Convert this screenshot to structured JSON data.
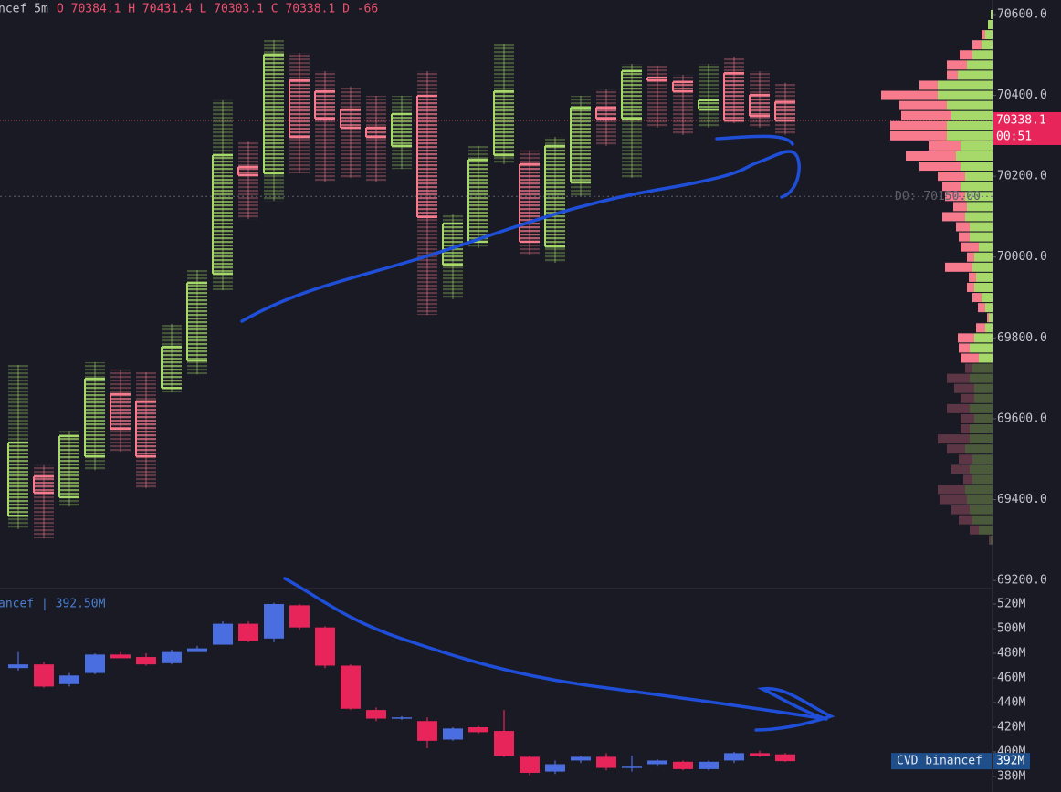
{
  "header": {
    "symbol": "ncef 5m",
    "stats": "O 70384.1 H 70431.4 L 70303.1 C 70338.1 D -66"
  },
  "chart_data": [
    {
      "type": "candlestick",
      "ylim": [
        69180,
        70636
      ],
      "yticks": [
        {
          "value": 70600,
          "label": "70600.0"
        },
        {
          "value": 70400,
          "label": "70400.0"
        },
        {
          "value": 70200,
          "label": "70200.0"
        },
        {
          "value": 70000,
          "label": "70000.0"
        },
        {
          "value": 69800,
          "label": "69800.0"
        },
        {
          "value": 69600,
          "label": "69600.0"
        },
        {
          "value": 69400,
          "label": "69400.0"
        },
        {
          "value": 69200,
          "label": "69200.0"
        }
      ],
      "up_color": "#a6d86a",
      "down_color": "#f77a8d",
      "open": [
        69360,
        69457,
        69406,
        69507,
        69661,
        69643,
        69676,
        69744,
        69959,
        70223,
        70207,
        70437,
        70410,
        70365,
        70320,
        70275,
        70399,
        69981,
        70038,
        70252,
        70230,
        70026,
        70185,
        70370,
        70343,
        70444,
        70433,
        70365,
        70455,
        70401,
        70384.1
      ],
      "high": [
        69733,
        69485,
        69570,
        69740,
        69722,
        69715,
        69835,
        69968,
        70388,
        70286,
        70537,
        70505,
        70460,
        70422,
        70399,
        70399,
        70460,
        70106,
        70275,
        70528,
        70264,
        70297,
        70399,
        70415,
        70478,
        70474,
        70451,
        70478,
        70496,
        70460,
        70431.4
      ],
      "low": [
        69327,
        69304,
        69383,
        69473,
        69518,
        69428,
        69665,
        69710,
        69918,
        70094,
        70139,
        70207,
        70185,
        70196,
        70185,
        70218,
        69857,
        69896,
        70022,
        70230,
        70004,
        69986,
        70151,
        70275,
        70196,
        70320,
        70302,
        70320,
        70331,
        70320,
        70303.1
      ],
      "close": [
        69541,
        69417,
        69557,
        69699,
        69575,
        69507,
        69778,
        69936,
        70252,
        70203,
        70501,
        70297,
        70343,
        70320,
        70297,
        70354,
        70099,
        70083,
        70241,
        70410,
        70038,
        70275,
        70370,
        70343,
        70460,
        70437,
        70410,
        70388,
        70338,
        70349,
        70338.1
      ],
      "price_tag": "70338.1",
      "countdown": "00:51",
      "daily_open": 70150,
      "daily_open_label": "DO: 70150.00",
      "volume_profile": {
        "levels": [
          70600,
          70575,
          70550,
          70525,
          70500,
          70475,
          70450,
          70425,
          70400,
          70375,
          70350,
          70325,
          70300,
          70275,
          70250,
          70225,
          70200,
          70175,
          70150,
          70125,
          70100,
          70075,
          70050,
          70025,
          70000,
          69975,
          69950,
          69925,
          69900,
          69875,
          69850,
          69825,
          69800,
          69775,
          69750,
          69725,
          69700,
          69675,
          69650,
          69625,
          69600,
          69575,
          69550,
          69525,
          69500,
          69475,
          69450,
          69425,
          69400,
          69375,
          69350,
          69325,
          69300
        ],
        "buy": [
          2,
          5,
          8,
          12,
          22,
          28,
          38,
          60,
          60,
          50,
          45,
          50,
          50,
          35,
          40,
          35,
          30,
          35,
          30,
          28,
          30,
          25,
          25,
          15,
          20,
          22,
          18,
          20,
          12,
          8,
          4,
          8,
          20,
          25,
          15,
          22,
          25,
          20,
          20,
          25,
          20,
          25,
          25,
          30,
          22,
          25,
          22,
          30,
          28,
          25,
          22,
          15,
          2
        ],
        "sell": [
          0,
          0,
          4,
          10,
          14,
          22,
          12,
          20,
          62,
          52,
          55,
          62,
          62,
          35,
          55,
          45,
          30,
          20,
          22,
          15,
          25,
          15,
          12,
          20,
          8,
          30,
          8,
          8,
          10,
          8,
          2,
          10,
          18,
          12,
          20,
          8,
          25,
          22,
          15,
          25,
          15,
          10,
          35,
          20,
          15,
          20,
          10,
          30,
          30,
          20,
          15,
          10,
          2
        ],
        "value_area_low": 69737
      }
    },
    {
      "type": "candlestick",
      "ylim": [
        367.4,
        532.6
      ],
      "yticks": [
        {
          "value": 520,
          "label": "520M"
        },
        {
          "value": 500,
          "label": "500M"
        },
        {
          "value": 480,
          "label": "480M"
        },
        {
          "value": 460,
          "label": "460M"
        },
        {
          "value": 440,
          "label": "440M"
        },
        {
          "value": 420,
          "label": "420M"
        },
        {
          "value": 400,
          "label": "400M"
        },
        {
          "value": 380,
          "label": "380M"
        }
      ],
      "up_color": "#4a6ee0",
      "down_color": "#e8255a",
      "open": [
        468,
        471,
        455,
        464,
        479,
        477,
        472,
        481,
        487,
        504,
        492,
        519,
        501,
        470,
        434,
        427,
        425,
        410,
        420,
        417,
        396,
        384,
        393,
        396,
        387,
        390,
        392,
        386,
        393,
        399,
        398
      ],
      "high": [
        481,
        473,
        464,
        480,
        481,
        480,
        483,
        486,
        506,
        506,
        521,
        520,
        502,
        471,
        436,
        429,
        428,
        420,
        421,
        434,
        397,
        393,
        397,
        399,
        397,
        394,
        393,
        393,
        400,
        401,
        399
      ],
      "low": [
        466,
        452,
        453,
        463,
        476,
        470,
        471,
        481,
        487,
        489,
        489,
        499,
        468,
        434,
        425,
        426,
        403,
        409,
        415,
        396,
        381,
        382,
        391,
        385,
        384,
        388,
        385,
        385,
        391,
        396,
        392
      ],
      "close": [
        471,
        453,
        462,
        479,
        476,
        471,
        481,
        484,
        504,
        490,
        520,
        501,
        470,
        435,
        427,
        428,
        409,
        419,
        416,
        397,
        383,
        390,
        396,
        387,
        388,
        393,
        386,
        392,
        399,
        397,
        392.5
      ],
      "legend": "ancef | 392.50M",
      "tag_name": "CVD binancef",
      "tag_value": "392M"
    }
  ]
}
